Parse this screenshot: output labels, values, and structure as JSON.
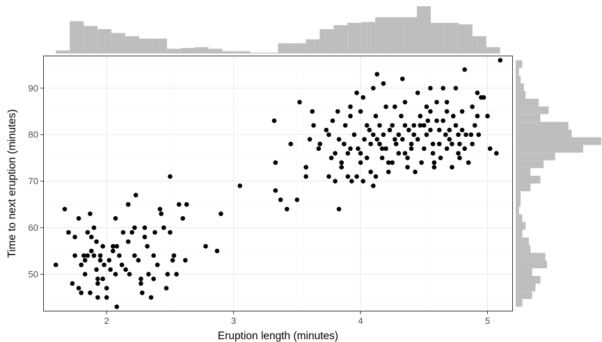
{
  "chart_data": {
    "type": "scatter",
    "title": "",
    "xlabel": "Eruption length (minutes)",
    "ylabel": "Time to next eruption (minutes)",
    "xlim": [
      1.5,
      5.2
    ],
    "ylim": [
      42,
      97
    ],
    "xticks": [
      2,
      3,
      4,
      5
    ],
    "yticks": [
      50,
      60,
      70,
      80,
      90
    ],
    "grid": true,
    "legend": "none",
    "colors": {
      "points": "#000000",
      "histograms": "#bebebe",
      "grid_major": "#ebebeb",
      "grid_minor": "#f5f5f5",
      "panel_border": "#333333"
    },
    "marginal_histograms": {
      "x_position": "top",
      "y_position": "right"
    },
    "points": [
      [
        1.6,
        52
      ],
      [
        1.67,
        64
      ],
      [
        1.7,
        59
      ],
      [
        1.73,
        48
      ],
      [
        1.75,
        54
      ],
      [
        1.75,
        58
      ],
      [
        1.78,
        62
      ],
      [
        1.78,
        47
      ],
      [
        1.8,
        52
      ],
      [
        1.8,
        46
      ],
      [
        1.82,
        54
      ],
      [
        1.83,
        50
      ],
      [
        1.83,
        53
      ],
      [
        1.85,
        59
      ],
      [
        1.85,
        54
      ],
      [
        1.87,
        46
      ],
      [
        1.87,
        63
      ],
      [
        1.88,
        58
      ],
      [
        1.88,
        55
      ],
      [
        1.9,
        60
      ],
      [
        1.9,
        54
      ],
      [
        1.92,
        57
      ],
      [
        1.92,
        51
      ],
      [
        1.93,
        45
      ],
      [
        1.93,
        49
      ],
      [
        1.93,
        48
      ],
      [
        1.95,
        53
      ],
      [
        1.95,
        54
      ],
      [
        1.97,
        56
      ],
      [
        1.97,
        49
      ],
      [
        1.98,
        52
      ],
      [
        2.0,
        47
      ],
      [
        2.0,
        45
      ],
      [
        2.02,
        53
      ],
      [
        2.03,
        51
      ],
      [
        2.05,
        56
      ],
      [
        2.05,
        55
      ],
      [
        2.07,
        50
      ],
      [
        2.07,
        62
      ],
      [
        2.08,
        43
      ],
      [
        2.08,
        56
      ],
      [
        2.1,
        54
      ],
      [
        2.12,
        52
      ],
      [
        2.13,
        59
      ],
      [
        2.15,
        51
      ],
      [
        2.17,
        57
      ],
      [
        2.17,
        65
      ],
      [
        2.18,
        50
      ],
      [
        2.2,
        59
      ],
      [
        2.22,
        60
      ],
      [
        2.22,
        54
      ],
      [
        2.23,
        67
      ],
      [
        2.25,
        53
      ],
      [
        2.27,
        49
      ],
      [
        2.27,
        48
      ],
      [
        2.28,
        46
      ],
      [
        2.3,
        60
      ],
      [
        2.3,
        58
      ],
      [
        2.32,
        56
      ],
      [
        2.33,
        50
      ],
      [
        2.35,
        45
      ],
      [
        2.37,
        54
      ],
      [
        2.37,
        49
      ],
      [
        2.38,
        59
      ],
      [
        2.4,
        52
      ],
      [
        2.42,
        64
      ],
      [
        2.43,
        63
      ],
      [
        2.45,
        60
      ],
      [
        2.47,
        47
      ],
      [
        2.48,
        50
      ],
      [
        2.5,
        59
      ],
      [
        2.5,
        71
      ],
      [
        2.52,
        53
      ],
      [
        2.53,
        54
      ],
      [
        2.55,
        50
      ],
      [
        2.57,
        65
      ],
      [
        2.6,
        62
      ],
      [
        2.62,
        53
      ],
      [
        2.63,
        65
      ],
      [
        2.78,
        56
      ],
      [
        2.87,
        55
      ],
      [
        2.9,
        63
      ],
      [
        3.05,
        69
      ],
      [
        3.32,
        83
      ],
      [
        3.33,
        68
      ],
      [
        3.33,
        74
      ],
      [
        3.37,
        66
      ],
      [
        3.42,
        64
      ],
      [
        3.45,
        78
      ],
      [
        3.5,
        66
      ],
      [
        3.52,
        87
      ],
      [
        3.57,
        71
      ],
      [
        3.57,
        73
      ],
      [
        3.6,
        79
      ],
      [
        3.62,
        85
      ],
      [
        3.63,
        82
      ],
      [
        3.67,
        77
      ],
      [
        3.68,
        78
      ],
      [
        3.73,
        81
      ],
      [
        3.75,
        71
      ],
      [
        3.75,
        80
      ],
      [
        3.77,
        75
      ],
      [
        3.78,
        83
      ],
      [
        3.8,
        70
      ],
      [
        3.8,
        76
      ],
      [
        3.82,
        85
      ],
      [
        3.83,
        79
      ],
      [
        3.83,
        64
      ],
      [
        3.85,
        74
      ],
      [
        3.85,
        73
      ],
      [
        3.87,
        78
      ],
      [
        3.88,
        82
      ],
      [
        3.9,
        76
      ],
      [
        3.9,
        71
      ],
      [
        3.92,
        84
      ],
      [
        3.92,
        77
      ],
      [
        3.93,
        70
      ],
      [
        3.95,
        80
      ],
      [
        3.97,
        89
      ],
      [
        3.97,
        71
      ],
      [
        3.98,
        77
      ],
      [
        4.0,
        85
      ],
      [
        4.0,
        76
      ],
      [
        4.0,
        74
      ],
      [
        4.02,
        70
      ],
      [
        4.03,
        79
      ],
      [
        4.05,
        82
      ],
      [
        4.05,
        75
      ],
      [
        4.07,
        81
      ],
      [
        4.08,
        78
      ],
      [
        4.08,
        72
      ],
      [
        4.1,
        69
      ],
      [
        4.1,
        80
      ],
      [
        4.12,
        84
      ],
      [
        4.12,
        71
      ],
      [
        4.13,
        93
      ],
      [
        4.13,
        79
      ],
      [
        4.15,
        82
      ],
      [
        4.15,
        78
      ],
      [
        4.17,
        77
      ],
      [
        4.17,
        75
      ],
      [
        4.18,
        91
      ],
      [
        4.18,
        80
      ],
      [
        4.2,
        86
      ],
      [
        4.2,
        77
      ],
      [
        4.22,
        74
      ],
      [
        4.22,
        72
      ],
      [
        4.23,
        81
      ],
      [
        4.25,
        82
      ],
      [
        4.25,
        74
      ],
      [
        4.27,
        86
      ],
      [
        4.27,
        79
      ],
      [
        4.28,
        78
      ],
      [
        4.3,
        80
      ],
      [
        4.3,
        76
      ],
      [
        4.32,
        84
      ],
      [
        4.33,
        92
      ],
      [
        4.33,
        79
      ],
      [
        4.35,
        82
      ],
      [
        4.35,
        76
      ],
      [
        4.37,
        75
      ],
      [
        4.37,
        73
      ],
      [
        4.38,
        81
      ],
      [
        4.4,
        78
      ],
      [
        4.4,
        77
      ],
      [
        4.42,
        82
      ],
      [
        4.42,
        80
      ],
      [
        4.43,
        72
      ],
      [
        4.45,
        89
      ],
      [
        4.45,
        79
      ],
      [
        4.47,
        84
      ],
      [
        4.47,
        82
      ],
      [
        4.48,
        74
      ],
      [
        4.5,
        82
      ],
      [
        4.5,
        77
      ],
      [
        4.52,
        86
      ],
      [
        4.52,
        80
      ],
      [
        4.53,
        83
      ],
      [
        4.55,
        90
      ],
      [
        4.55,
        81
      ],
      [
        4.57,
        78
      ],
      [
        4.57,
        76
      ],
      [
        4.58,
        74
      ],
      [
        4.58,
        73
      ],
      [
        4.6,
        87
      ],
      [
        4.6,
        83
      ],
      [
        4.62,
        81
      ],
      [
        4.62,
        78
      ],
      [
        4.63,
        75
      ],
      [
        4.65,
        90
      ],
      [
        4.65,
        83
      ],
      [
        4.67,
        80
      ],
      [
        4.68,
        85
      ],
      [
        4.68,
        77
      ],
      [
        4.7,
        81
      ],
      [
        4.7,
        79
      ],
      [
        4.72,
        73
      ],
      [
        4.72,
        78
      ],
      [
        4.73,
        84
      ],
      [
        4.75,
        90
      ],
      [
        4.75,
        82
      ],
      [
        4.77,
        76
      ],
      [
        4.77,
        80
      ],
      [
        4.78,
        75
      ],
      [
        4.78,
        78
      ],
      [
        4.8,
        81
      ],
      [
        4.8,
        85
      ],
      [
        4.82,
        94
      ],
      [
        4.82,
        77
      ],
      [
        4.83,
        80
      ],
      [
        4.85,
        74
      ],
      [
        4.87,
        80
      ],
      [
        4.88,
        86
      ],
      [
        4.9,
        82
      ],
      [
        4.92,
        84
      ],
      [
        4.93,
        80
      ],
      [
        4.95,
        88
      ],
      [
        4.97,
        88
      ],
      [
        5.0,
        84
      ],
      [
        5.02,
        77
      ],
      [
        5.07,
        76
      ],
      [
        5.1,
        96
      ],
      [
        4.1,
        90
      ],
      [
        4.55,
        85
      ],
      [
        4.92,
        89
      ],
      [
        4.35,
        87
      ],
      [
        3.92,
        86
      ],
      [
        4.68,
        87
      ],
      [
        4.02,
        88
      ],
      [
        4.88,
        78
      ]
    ],
    "x_histogram": {
      "range": [
        1.6,
        5.1
      ],
      "counts": [
        4,
        41,
        35,
        31,
        26,
        22,
        19,
        19,
        6,
        7,
        8,
        6,
        3,
        3,
        1,
        1,
        13,
        13,
        18,
        31,
        36,
        39,
        40,
        46,
        46,
        46,
        60,
        39,
        39,
        37,
        22,
        8
      ]
    },
    "y_histogram": {
      "range": [
        43,
        96
      ],
      "counts": [
        4,
        10,
        12,
        15,
        10,
        19,
        18,
        9,
        8,
        4,
        6,
        4,
        2,
        3,
        3,
        9,
        15,
        9,
        17,
        24,
        41,
        52,
        34,
        32,
        15,
        20,
        14,
        6,
        5,
        3,
        2,
        4
      ]
    }
  }
}
